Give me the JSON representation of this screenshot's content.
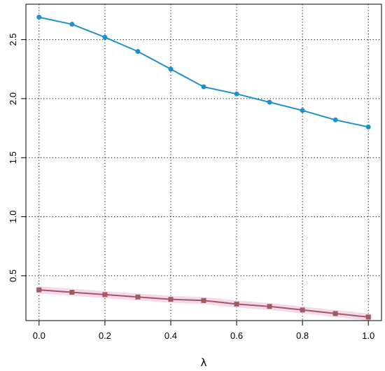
{
  "chart_data": {
    "type": "line",
    "title": "",
    "xlabel": "λ",
    "ylabel": "",
    "xlim": [
      -0.04,
      1.04
    ],
    "ylim": [
      0.12,
      2.8
    ],
    "x_ticks": [
      "0.0",
      "0.2",
      "0.4",
      "0.6",
      "0.8",
      "1.0"
    ],
    "x_tick_values": [
      0.0,
      0.2,
      0.4,
      0.6,
      0.8,
      1.0
    ],
    "y_ticks": [
      "0.5",
      "1.0",
      "1.5",
      "2.0",
      "2.5"
    ],
    "y_tick_values": [
      0.5,
      1.0,
      1.5,
      2.0,
      2.5
    ],
    "grid": true,
    "x": [
      0.0,
      0.1,
      0.2,
      0.3,
      0.4,
      0.5,
      0.6,
      0.7,
      0.8,
      0.9,
      1.0
    ],
    "series": [
      {
        "color": "#1f8fcf",
        "marker": "circle",
        "values": [
          2.69,
          2.63,
          2.52,
          2.4,
          2.25,
          2.1,
          2.04,
          1.97,
          1.9,
          1.82,
          1.76
        ]
      },
      {
        "color": "#a05a60",
        "marker": "square",
        "band_color": "#f6d8ee",
        "values": [
          0.38,
          0.36,
          0.34,
          0.32,
          0.3,
          0.29,
          0.26,
          0.24,
          0.21,
          0.18,
          0.15
        ]
      }
    ]
  }
}
